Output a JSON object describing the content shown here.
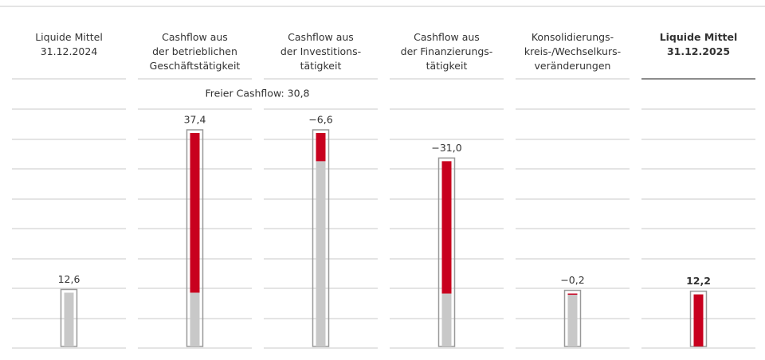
{
  "chart_data": {
    "type": "waterfall",
    "categories": [
      [
        "Liquide Mittel",
        "31.12.2024"
      ],
      [
        "Cashflow aus",
        "der betrieblichen",
        "Geschäftstätigkeit"
      ],
      [
        "Cashflow aus",
        "der Investitions-",
        "tätigkeit"
      ],
      [
        "Cashflow aus",
        "der Finanzierungs-",
        "tätigkeit"
      ],
      [
        "Konsolidierungs-",
        "kreis-/Wechselkurs-",
        "veränderungen"
      ],
      [
        "Liquide Mittel",
        "31.12.2025"
      ]
    ],
    "values": [
      12.6,
      37.4,
      -6.6,
      -31.0,
      -0.2,
      12.2
    ],
    "value_labels": [
      "12,6",
      "37,4",
      "−6,6",
      "−31,0",
      "−0,2",
      "12,2"
    ],
    "annotation": "Freier Cashflow: 30,8",
    "colors": {
      "change": "#c8001e",
      "base": "#c8c8c8"
    }
  }
}
